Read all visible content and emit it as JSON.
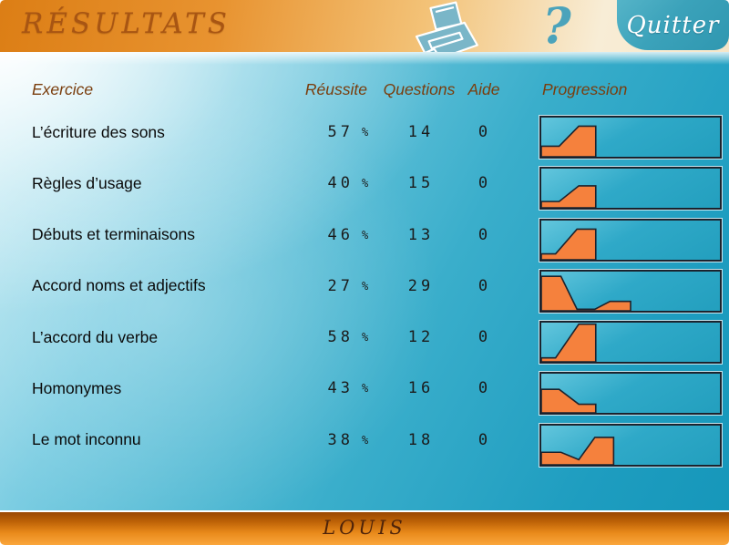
{
  "header": {
    "title": "RÉSULTATS",
    "quit_label": "Quitter",
    "icons": [
      "printer-icon",
      "help-icon"
    ]
  },
  "table": {
    "columns": {
      "exercise": "Exercice",
      "success": "Réussite",
      "questions": "Questions",
      "help": "Aide",
      "progression": "Progression"
    },
    "rows": [
      {
        "exercise": "L’écriture des sons",
        "success": 57,
        "unit": "%",
        "questions": 14,
        "help": 0,
        "progression_points": [
          [
            0,
            0.27
          ],
          [
            0.1,
            0.27
          ],
          [
            0.21,
            0.78
          ],
          [
            0.305,
            0.78
          ],
          [
            0.305,
            0
          ]
        ]
      },
      {
        "exercise": "Règles d’usage",
        "success": 40,
        "unit": "%",
        "questions": 15,
        "help": 0,
        "progression_points": [
          [
            0,
            0.16
          ],
          [
            0.1,
            0.16
          ],
          [
            0.21,
            0.56
          ],
          [
            0.305,
            0.56
          ],
          [
            0.305,
            0
          ]
        ]
      },
      {
        "exercise": "Débuts et terminaisons",
        "success": 46,
        "unit": "%",
        "questions": 13,
        "help": 0,
        "progression_points": [
          [
            0,
            0.15
          ],
          [
            0.08,
            0.15
          ],
          [
            0.2,
            0.78
          ],
          [
            0.305,
            0.78
          ],
          [
            0.305,
            0
          ]
        ]
      },
      {
        "exercise": "Accord noms et adjectifs",
        "success": 27,
        "unit": "%",
        "questions": 29,
        "help": 0,
        "progression_points": [
          [
            0,
            0.88
          ],
          [
            0.11,
            0.88
          ],
          [
            0.2,
            0.04
          ],
          [
            0.3,
            0.04
          ],
          [
            0.385,
            0.24
          ],
          [
            0.5,
            0.24
          ],
          [
            0.5,
            0
          ]
        ]
      },
      {
        "exercise": "L’accord du verbe",
        "success": 58,
        "unit": "%",
        "questions": 12,
        "help": 0,
        "progression_points": [
          [
            0,
            0.1
          ],
          [
            0.08,
            0.1
          ],
          [
            0.21,
            0.96
          ],
          [
            0.305,
            0.96
          ],
          [
            0.305,
            0
          ]
        ]
      },
      {
        "exercise": "Homonymes",
        "success": 43,
        "unit": "%",
        "questions": 16,
        "help": 0,
        "progression_points": [
          [
            0,
            0.6
          ],
          [
            0.1,
            0.6
          ],
          [
            0.21,
            0.22
          ],
          [
            0.305,
            0.22
          ],
          [
            0.305,
            0
          ]
        ]
      },
      {
        "exercise": "Le mot inconnu",
        "success": 38,
        "unit": "%",
        "questions": 18,
        "help": 0,
        "progression_points": [
          [
            0,
            0.32
          ],
          [
            0.11,
            0.32
          ],
          [
            0.21,
            0.13
          ],
          [
            0.3,
            0.7
          ],
          [
            0.405,
            0.7
          ],
          [
            0.405,
            0
          ]
        ]
      }
    ]
  },
  "footer": {
    "student_name": "LOUIS"
  },
  "colors": {
    "progress_fill": "#F5813D",
    "progress_outline": "#1B232E",
    "chart_background": "#2AA6C4",
    "header_text": "#7A3E0E",
    "title_text": "#A85513",
    "quit_button": "#3BA2BA",
    "icon_teal": "#7AB6C8",
    "footer_text": "#4F240A"
  }
}
